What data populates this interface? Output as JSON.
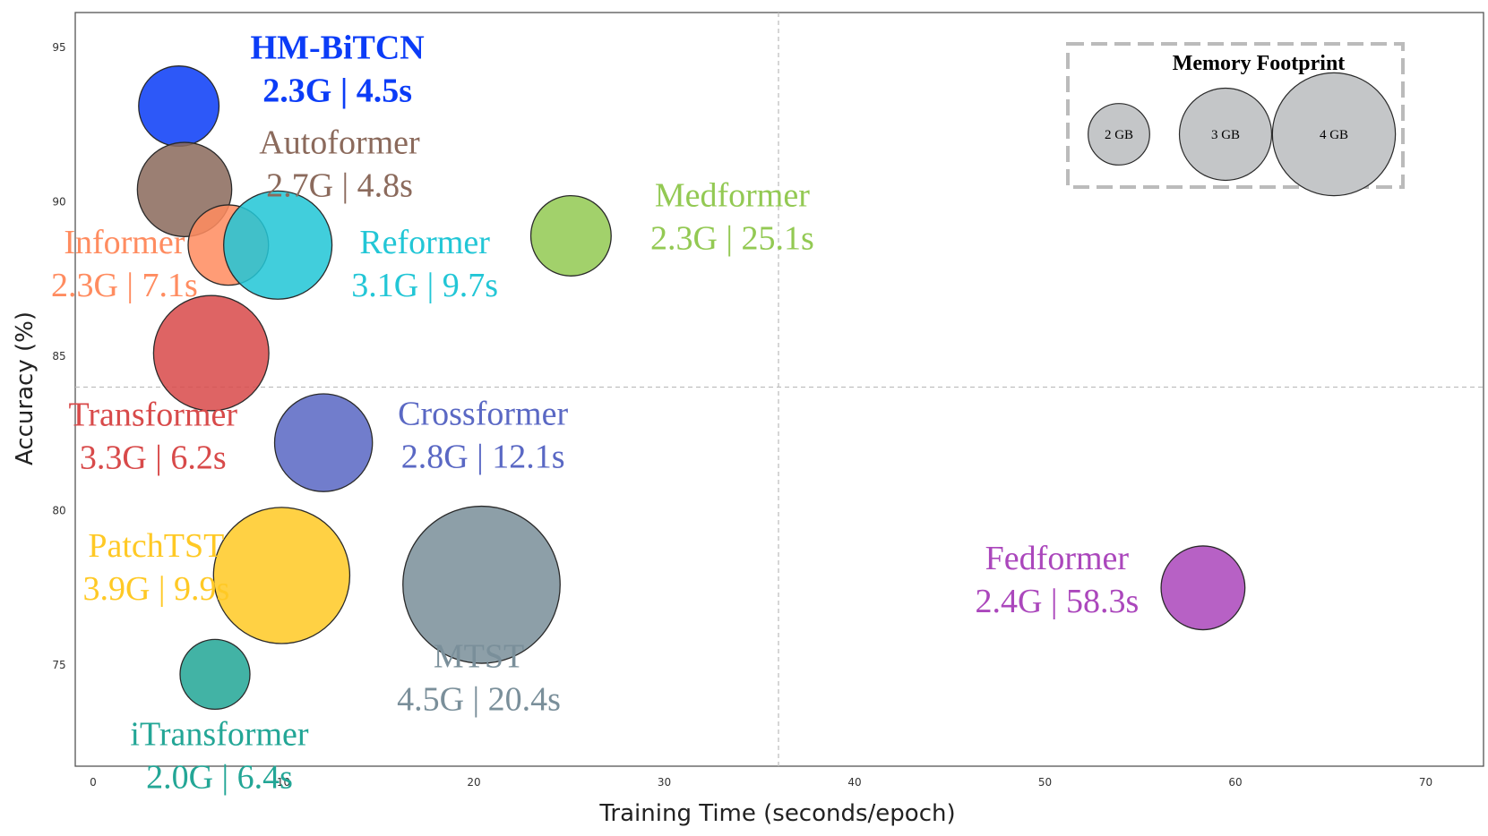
{
  "chart_data": {
    "type": "scatter",
    "xlabel": "Training Time (seconds/epoch)",
    "ylabel": "Accuracy (%)",
    "x_ticks": [
      "0",
      "10",
      "20",
      "30",
      "40",
      "50",
      "60",
      "70"
    ],
    "y_ticks": [
      "75",
      "80",
      "85",
      "90",
      "95"
    ],
    "grid": false,
    "points": [
      {
        "name": "HM-BiTCN",
        "detail": "2.3G | 4.5s",
        "train_time": 4.5,
        "accuracy": 93.1,
        "memory_gb": 2.3,
        "color": "#0b3cf7",
        "bold": true
      },
      {
        "name": "Autoformer",
        "detail": "2.7G | 4.8s",
        "train_time": 4.8,
        "accuracy": 90.4,
        "memory_gb": 2.7,
        "color": "#8b6a5c"
      },
      {
        "name": "Informer",
        "detail": "2.3G | 7.1s",
        "train_time": 7.1,
        "accuracy": 88.6,
        "memory_gb": 2.3,
        "color": "#ff8c60"
      },
      {
        "name": "Reformer",
        "detail": "3.1G | 9.7s",
        "train_time": 9.7,
        "accuracy": 88.6,
        "memory_gb": 3.1,
        "color": "#22c6d6"
      },
      {
        "name": "Medformer",
        "detail": "2.3G | 25.1s",
        "train_time": 25.1,
        "accuracy": 88.9,
        "memory_gb": 2.3,
        "color": "#93c953"
      },
      {
        "name": "Transformer",
        "detail": "3.3G | 6.2s",
        "train_time": 6.2,
        "accuracy": 85.1,
        "memory_gb": 3.3,
        "color": "#d84a4a"
      },
      {
        "name": "Crossformer",
        "detail": "2.8G | 12.1s",
        "train_time": 12.1,
        "accuracy": 82.2,
        "memory_gb": 2.8,
        "color": "#5a68c4"
      },
      {
        "name": "PatchTST",
        "detail": "3.9G | 9.9s",
        "train_time": 9.9,
        "accuracy": 77.9,
        "memory_gb": 3.9,
        "color": "#ffc925"
      },
      {
        "name": "MTST",
        "detail": "4.5G | 20.4s",
        "train_time": 20.4,
        "accuracy": 77.6,
        "memory_gb": 4.5,
        "color": "#7a8f9a"
      },
      {
        "name": "Fedformer",
        "detail": "2.4G | 58.3s",
        "train_time": 58.3,
        "accuracy": 77.5,
        "memory_gb": 2.4,
        "color": "#ab47bc"
      },
      {
        "name": "iTransformer",
        "detail": "2.0G | 6.4s",
        "train_time": 6.4,
        "accuracy": 74.7,
        "memory_gb": 2.0,
        "color": "#23a696"
      }
    ],
    "reference_lines": {
      "x": 36,
      "y": 84
    },
    "legend": {
      "title": "Memory Footprint",
      "position": "top-right",
      "items": [
        {
          "label": "2 GB",
          "memory_gb": 2
        },
        {
          "label": "3 GB",
          "memory_gb": 3
        },
        {
          "label": "4 GB",
          "memory_gb": 4
        }
      ]
    }
  }
}
